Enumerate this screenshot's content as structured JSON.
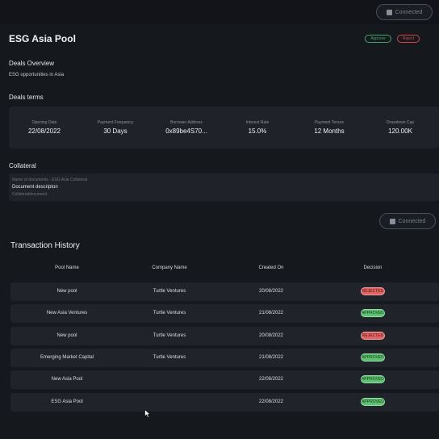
{
  "header": {
    "connect_label": "Connected",
    "title": "ESG Asia Pool",
    "approve_label": "Approve",
    "reject_label": "Reject"
  },
  "overview": {
    "heading": "Deals Overview",
    "text": "ESG opportunities in Asia"
  },
  "terms": {
    "heading": "Deals terms",
    "items": [
      {
        "label": "Opening Date",
        "value": "22/08/2022"
      },
      {
        "label": "Payment Frequency",
        "value": "30 Days"
      },
      {
        "label": "Borrower Address",
        "value": "0x89be4S70..."
      },
      {
        "label": "Interest Rate",
        "value": "15.0%"
      },
      {
        "label": "Payment Tenure",
        "value": "12 Months"
      },
      {
        "label": "Drawdown Cap",
        "value": "120.00K"
      }
    ]
  },
  "collateral": {
    "heading": "Collateral",
    "name_line": "Name of documents - ESG Asia Collateral",
    "description": "Document descripton",
    "document": "Collateraldocument"
  },
  "connect_mid_label": "Connected",
  "transactions": {
    "title": "Transaction History",
    "columns": [
      "Pool Name",
      "Company Name",
      "Created On",
      "Decision"
    ],
    "rows": [
      {
        "pool": "New pool",
        "company": "Turtle Ventures",
        "created": "20/08/2022",
        "decision": "REJECTED",
        "status": "rejected"
      },
      {
        "pool": "New Asia Ventures",
        "company": "Turtle Ventures",
        "created": "21/08/2022",
        "decision": "APPROVED",
        "status": "approved"
      },
      {
        "pool": "New pool",
        "company": "Turtle Ventures",
        "created": "20/08/2022",
        "decision": "REJECTED",
        "status": "rejected"
      },
      {
        "pool": "Emerging Market Capital",
        "company": "Turtle Ventures",
        "created": "21/08/2022",
        "decision": "APPROVED",
        "status": "approved"
      },
      {
        "pool": "New Asia Pool",
        "company": "",
        "created": "22/08/2022",
        "decision": "APPROVED",
        "status": "approved"
      },
      {
        "pool": "ESG Asia Pool",
        "company": "",
        "created": "22/08/2022",
        "decision": "APPROVED",
        "status": "approved"
      }
    ]
  },
  "colors": {
    "background": "#15181d",
    "card": "#1f2228",
    "approve": "#3fa56a",
    "reject": "#d64545"
  }
}
